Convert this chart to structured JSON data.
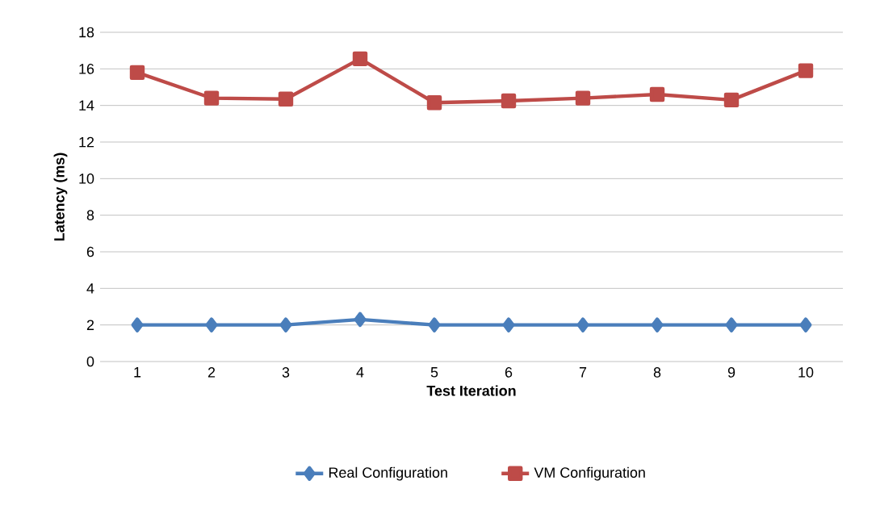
{
  "chart_data": {
    "type": "line",
    "xlabel": "Test Iteration",
    "ylabel": "Latency (ms)",
    "categories": [
      "1",
      "2",
      "3",
      "4",
      "5",
      "6",
      "7",
      "8",
      "9",
      "10"
    ],
    "series": [
      {
        "name": "Real Configuration",
        "color": "#4a7ebb",
        "marker": "diamond",
        "values": [
          2.0,
          2.0,
          2.0,
          2.3,
          2.0,
          2.0,
          2.0,
          2.0,
          2.0,
          2.0
        ]
      },
      {
        "name": "VM Configuration",
        "color": "#be4b48",
        "marker": "square",
        "values": [
          15.8,
          14.4,
          14.35,
          16.55,
          14.15,
          14.25,
          14.4,
          14.6,
          14.3,
          15.9
        ]
      }
    ],
    "ylim": [
      0,
      18
    ],
    "yticks": [
      0,
      2,
      4,
      6,
      8,
      10,
      12,
      14,
      16,
      18
    ],
    "grid": "y",
    "legend": "bottom"
  }
}
